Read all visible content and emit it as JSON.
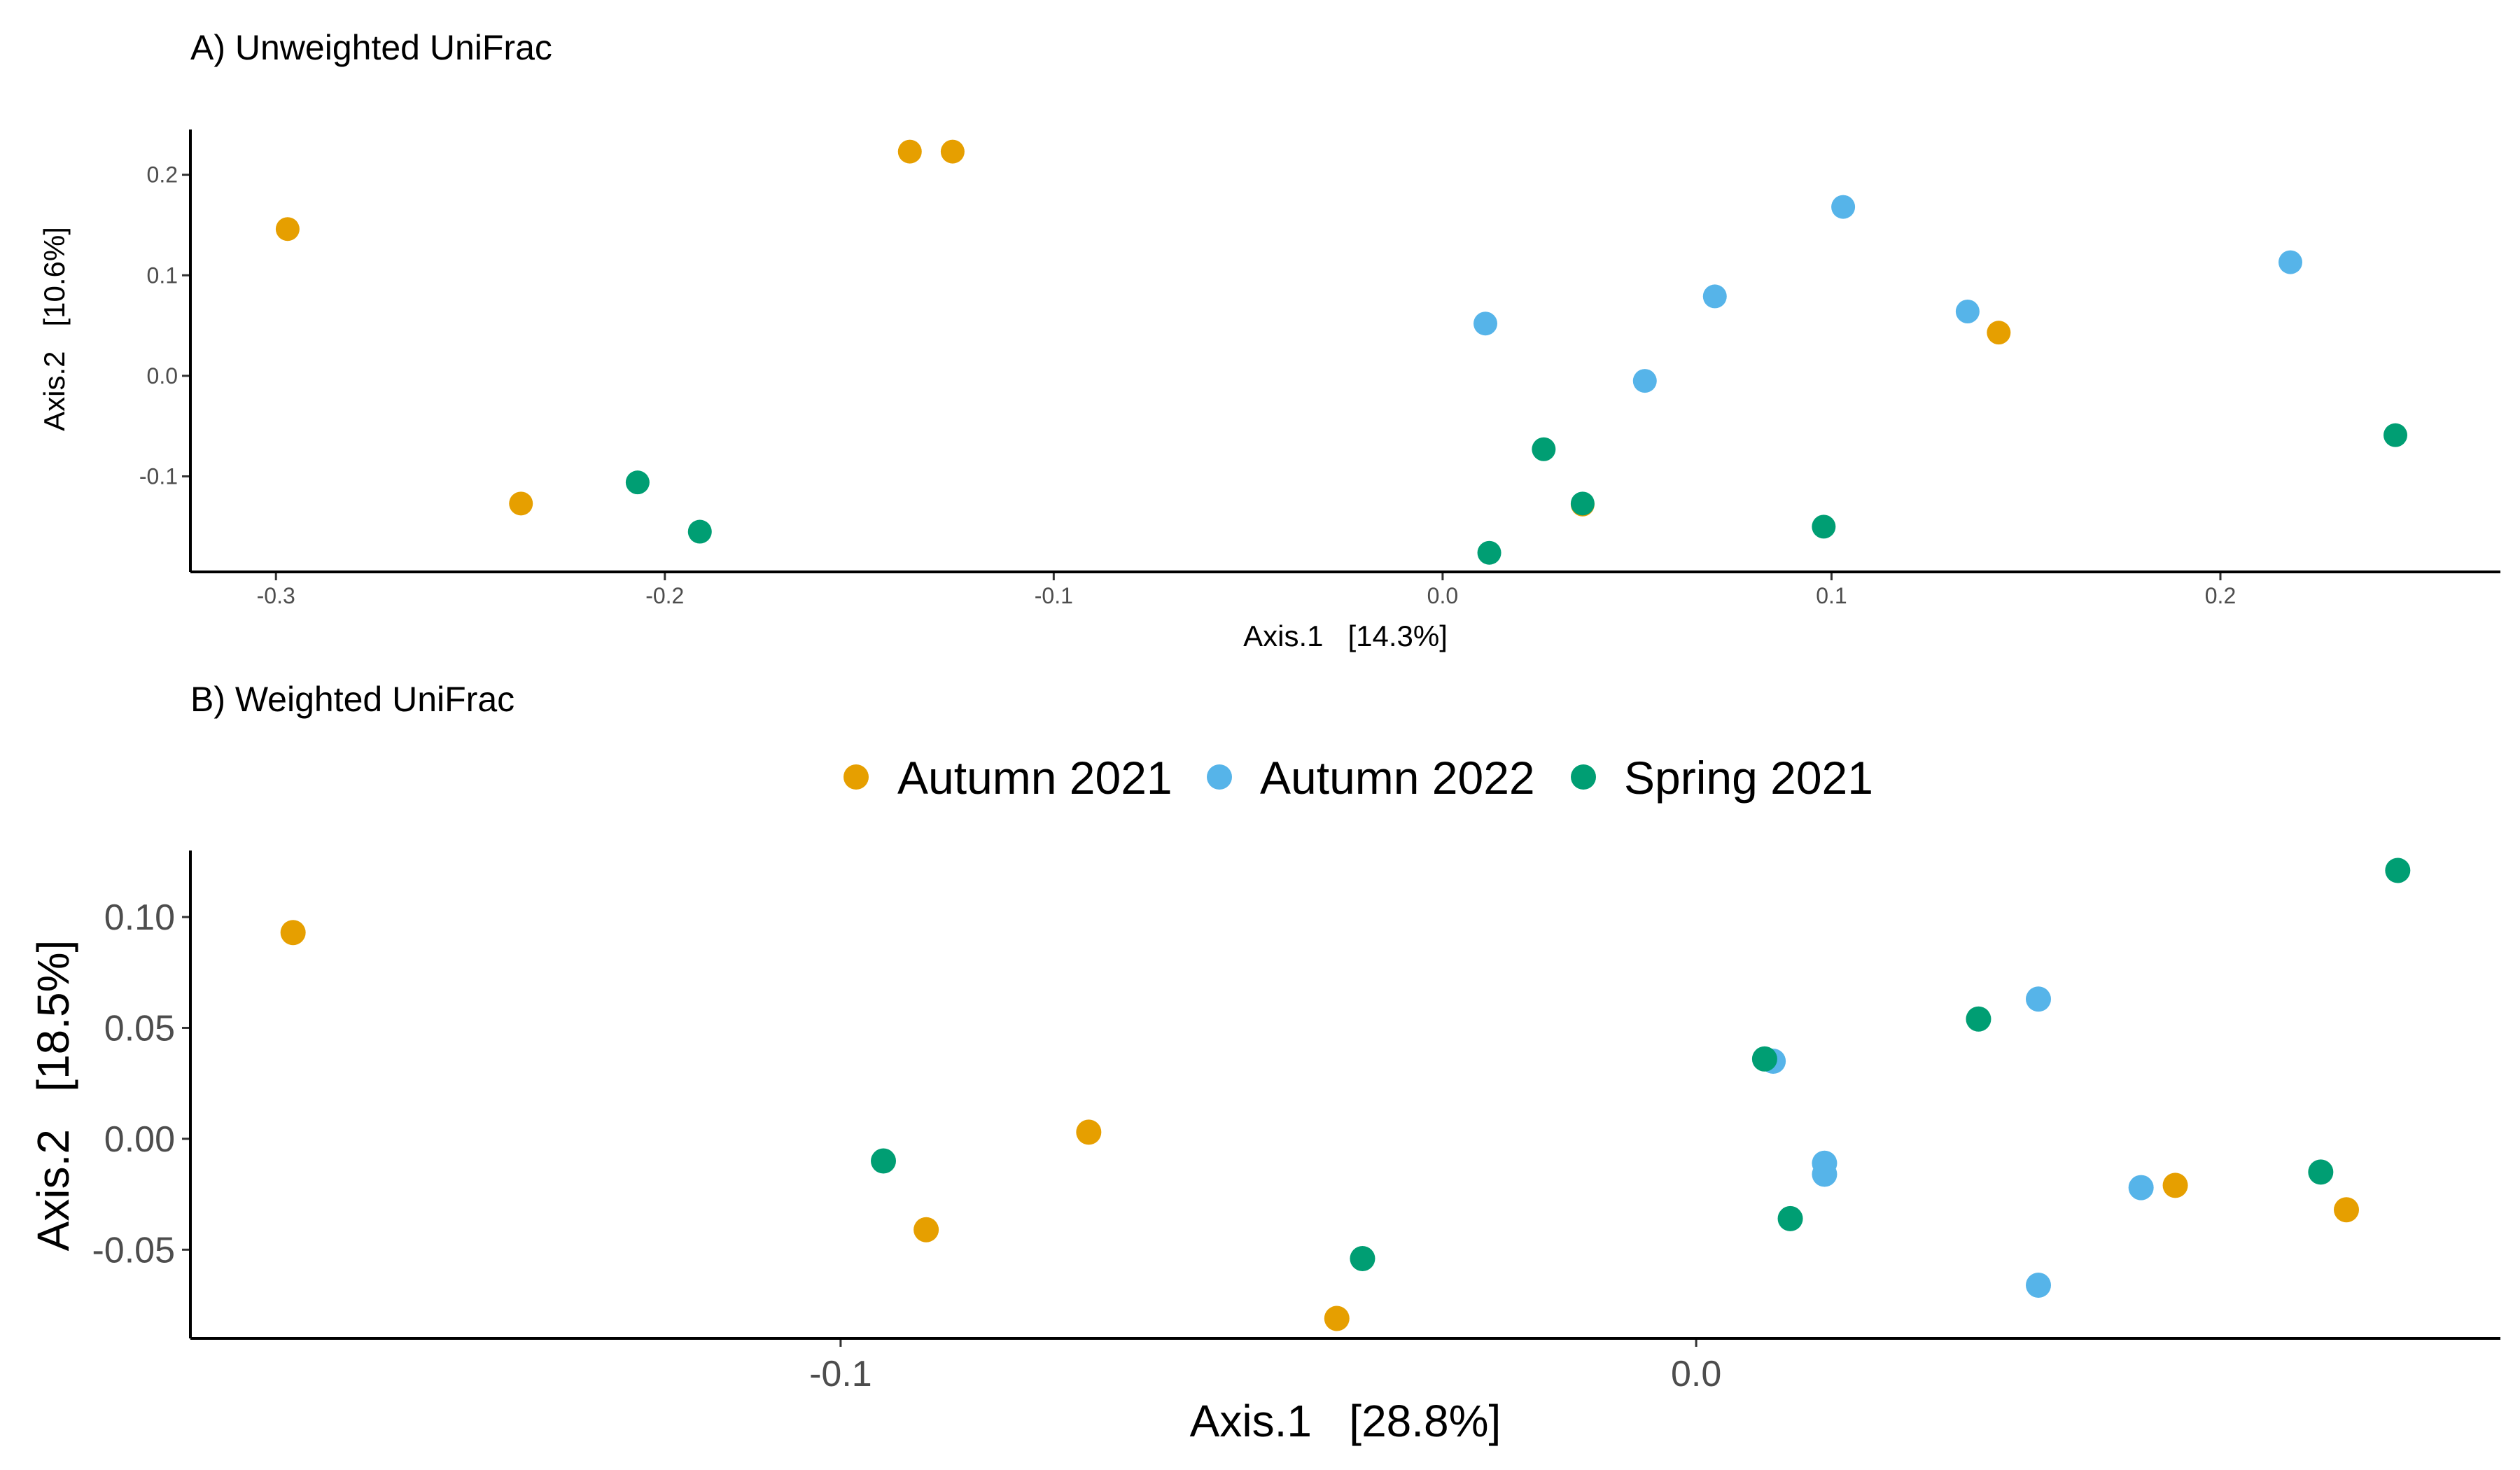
{
  "colors": {
    "Autumn 2021": "#E69F00",
    "Autumn 2022": "#56B4E9",
    "Spring 2021": "#009E73"
  },
  "legend": {
    "items": [
      "Autumn 2021",
      "Autumn 2022",
      "Spring 2021"
    ],
    "placement": "between panels, centered above panel B"
  },
  "chart_data": [
    {
      "type": "scatter",
      "title": "A) Unweighted UniFrac",
      "xlabel": "Axis.1   [14.3%]",
      "ylabel": "Axis.2   [10.6%]",
      "xlim": [
        -0.322,
        0.272
      ],
      "ylim": [
        -0.195,
        0.245
      ],
      "xticks": [
        -0.3,
        -0.2,
        -0.1,
        0.0,
        0.1,
        0.2
      ],
      "xtick_labels": [
        "-0.3",
        "-0.2",
        "-0.1",
        "0.0",
        "0.1",
        "0.2"
      ],
      "yticks": [
        -0.1,
        0.0,
        0.1,
        0.2
      ],
      "ytick_labels": [
        "-0.1",
        "0.0",
        "0.1",
        "0.2"
      ],
      "grid": false,
      "series": [
        {
          "name": "Autumn 2021",
          "x": [
            -0.297,
            -0.237,
            -0.137,
            -0.126,
            0.036,
            0.143
          ],
          "y": [
            0.146,
            -0.127,
            0.223,
            0.223,
            -0.128,
            0.043
          ]
        },
        {
          "name": "Autumn 2022",
          "x": [
            0.011,
            0.052,
            0.07,
            0.103,
            0.135,
            0.218
          ],
          "y": [
            0.052,
            -0.005,
            0.079,
            0.168,
            0.064,
            0.113
          ]
        },
        {
          "name": "Spring 2021",
          "x": [
            -0.207,
            -0.191,
            0.012,
            0.026,
            0.036,
            0.098,
            0.245
          ],
          "y": [
            -0.106,
            -0.155,
            -0.176,
            -0.073,
            -0.127,
            -0.15,
            -0.059
          ]
        }
      ]
    },
    {
      "type": "scatter",
      "title": "B) Weighted UniFrac",
      "xlabel": "Axis.1   [28.8%]",
      "ylabel": "Axis.2   [18.5%]",
      "xlim": [
        -0.176,
        0.094
      ],
      "ylim": [
        -0.09,
        0.13
      ],
      "xticks": [
        -0.1,
        0.0
      ],
      "xtick_labels": [
        "-0.1",
        "0.0"
      ],
      "yticks": [
        -0.05,
        0.0,
        0.05,
        0.1
      ],
      "ytick_labels": [
        "-0.05",
        "0.00",
        "0.05",
        "0.10"
      ],
      "grid": false,
      "series": [
        {
          "name": "Autumn 2021",
          "x": [
            -0.164,
            -0.09,
            -0.071,
            -0.042,
            0.056,
            0.076
          ],
          "y": [
            0.093,
            -0.041,
            0.003,
            -0.081,
            -0.021,
            -0.032
          ]
        },
        {
          "name": "Autumn 2022",
          "x": [
            0.009,
            0.015,
            0.015,
            0.04,
            0.052,
            0.04
          ],
          "y": [
            0.035,
            -0.011,
            -0.016,
            0.063,
            -0.022,
            -0.066
          ]
        },
        {
          "name": "Spring 2021",
          "x": [
            -0.095,
            -0.039,
            0.008,
            0.011,
            0.033,
            0.073,
            0.082
          ],
          "y": [
            -0.01,
            -0.054,
            0.036,
            -0.036,
            0.054,
            -0.015,
            0.121
          ]
        }
      ]
    }
  ]
}
